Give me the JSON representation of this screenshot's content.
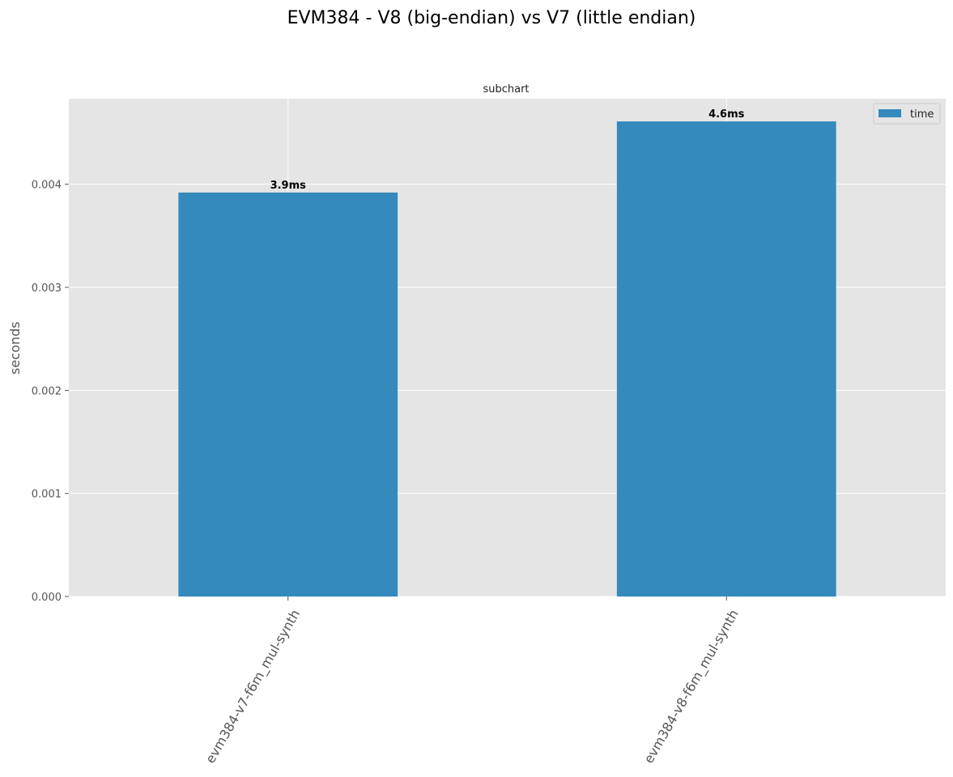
{
  "figure": {
    "suptitle": "EVM384 - V8 (big-endian) vs V7 (little endian)"
  },
  "chart_data": {
    "type": "bar",
    "title": "subchart",
    "xlabel": "",
    "ylabel": "seconds",
    "categories": [
      "evm384-v7-f6m_mul-synth",
      "evm384-v8-f6m_mul-synth"
    ],
    "series": [
      {
        "name": "time",
        "values": [
          0.00392,
          0.00461
        ],
        "data_labels": [
          "3.9ms",
          "4.6ms"
        ],
        "color": "#348abd"
      }
    ],
    "yticks": [
      0.0,
      0.001,
      0.002,
      0.003,
      0.004
    ],
    "ytick_labels": [
      "0.000",
      "0.001",
      "0.002",
      "0.003",
      "0.004"
    ],
    "ylim": [
      0,
      0.00483
    ],
    "grid": true,
    "legend_position": "top-right",
    "background_color": "#e5e5e5",
    "grid_color": "#ffffff"
  }
}
